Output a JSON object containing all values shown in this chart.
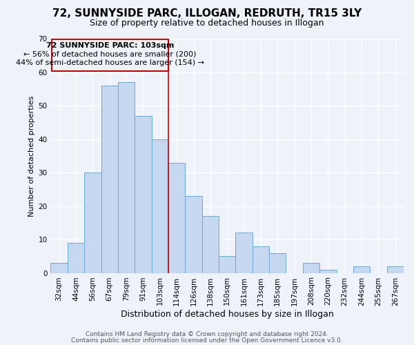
{
  "title": "72, SUNNYSIDE PARC, ILLOGAN, REDRUTH, TR15 3LY",
  "subtitle": "Size of property relative to detached houses in Illogan",
  "xlabel": "Distribution of detached houses by size in Illogan",
  "ylabel": "Number of detached properties",
  "bar_labels": [
    "32sqm",
    "44sqm",
    "56sqm",
    "67sqm",
    "79sqm",
    "91sqm",
    "103sqm",
    "114sqm",
    "126sqm",
    "138sqm",
    "150sqm",
    "161sqm",
    "173sqm",
    "185sqm",
    "197sqm",
    "208sqm",
    "220sqm",
    "232sqm",
    "244sqm",
    "255sqm",
    "267sqm"
  ],
  "bar_values": [
    3,
    9,
    30,
    56,
    57,
    47,
    40,
    33,
    23,
    17,
    5,
    12,
    8,
    6,
    0,
    3,
    1,
    0,
    2,
    0,
    2
  ],
  "bar_color": "#c5d8f0",
  "bar_edge_color": "#6aaad4",
  "highlight_index": 6,
  "highlight_line_color": "#cc0000",
  "annotation_box_edge_color": "#cc0000",
  "annotation_line1": "72 SUNNYSIDE PARC: 103sqm",
  "annotation_line2": "← 56% of detached houses are smaller (200)",
  "annotation_line3": "44% of semi-detached houses are larger (154) →",
  "ylim": [
    0,
    70
  ],
  "yticks": [
    0,
    10,
    20,
    30,
    40,
    50,
    60,
    70
  ],
  "footer_line1": "Contains HM Land Registry data © Crown copyright and database right 2024.",
  "footer_line2": "Contains public sector information licensed under the Open Government Licence v3.0.",
  "bg_color": "#eef2f9",
  "grid_color": "#ffffff",
  "title_fontsize": 11,
  "subtitle_fontsize": 9,
  "xlabel_fontsize": 9,
  "ylabel_fontsize": 8,
  "tick_fontsize": 7.5,
  "annotation_fontsize": 8,
  "footer_fontsize": 6.5
}
